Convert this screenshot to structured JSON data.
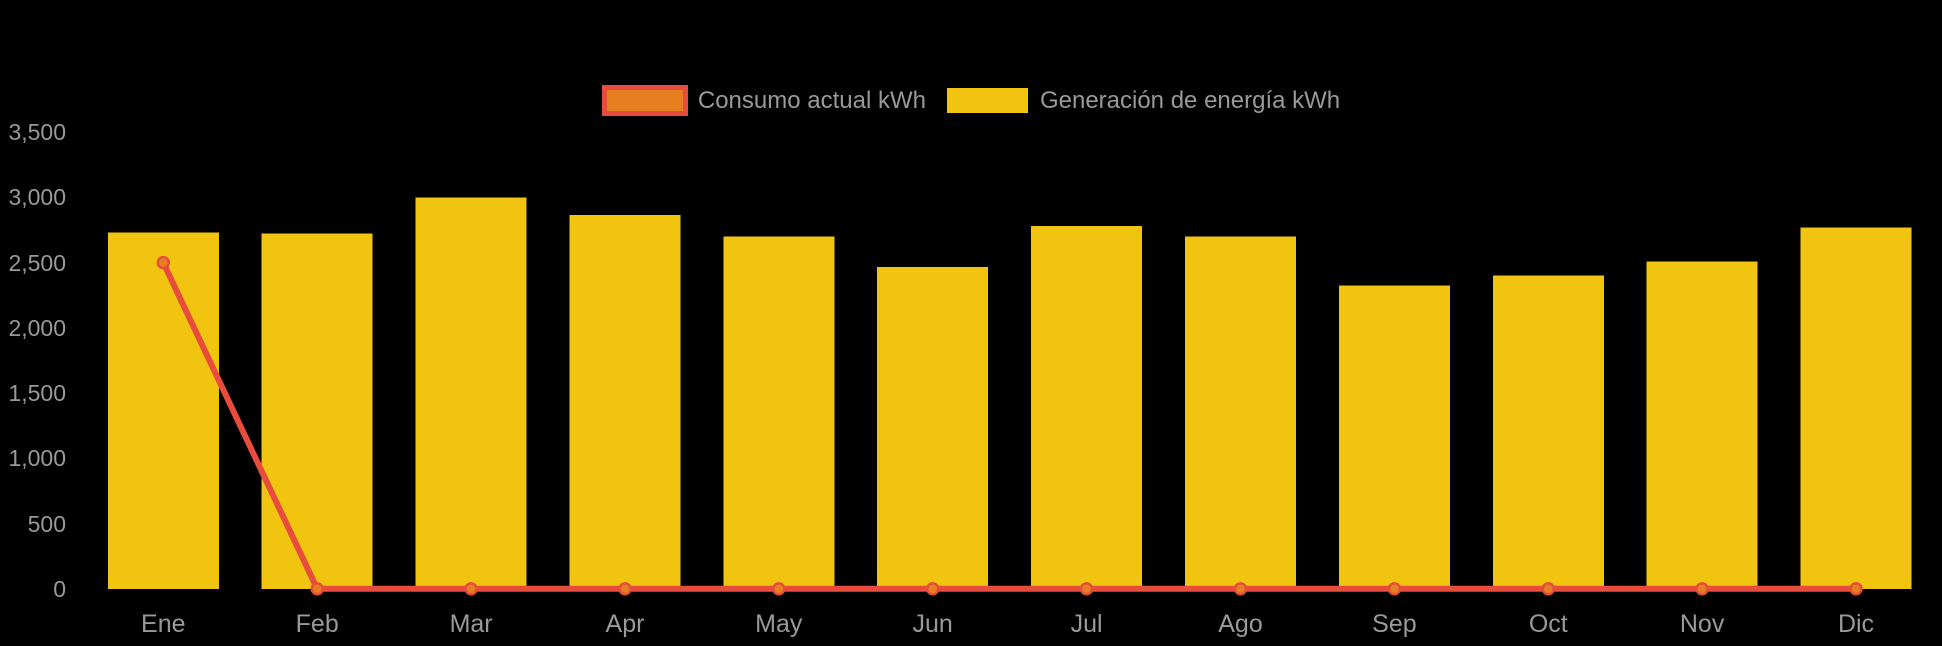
{
  "chart_data": {
    "type": "bar",
    "title": "",
    "xlabel": "",
    "ylabel": "",
    "categories": [
      "Ene",
      "Feb",
      "Mar",
      "Apr",
      "May",
      "Jun",
      "Jul",
      "Ago",
      "Sep",
      "Oct",
      "Nov",
      "Dic"
    ],
    "series": [
      {
        "name": "Consumo actual kWh",
        "type": "line",
        "color": "#E74C3C",
        "marker_fill": "#E67E22",
        "values": [
          2500,
          0,
          0,
          0,
          0,
          0,
          0,
          0,
          0,
          0,
          0,
          0
        ]
      },
      {
        "name": "Generación de energía kWh",
        "type": "bar",
        "color": "#F1C40F",
        "values": [
          2730,
          2725,
          3000,
          2865,
          2700,
          2465,
          2780,
          2700,
          2325,
          2400,
          2510,
          2770
        ]
      }
    ],
    "ylim": [
      0,
      3500
    ],
    "ytick_step": 500,
    "ytick_labels": [
      "0",
      "500",
      "1,000",
      "1,500",
      "2,000",
      "2,500",
      "3,000",
      "3,500"
    ],
    "grid": false,
    "legend_position": "top-center",
    "background_color": "#000000",
    "text_color": "#999999"
  }
}
